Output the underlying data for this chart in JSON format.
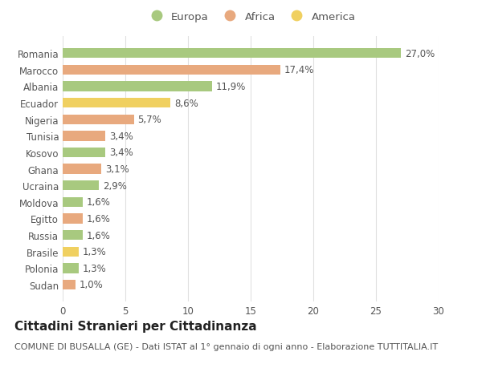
{
  "countries": [
    "Romania",
    "Marocco",
    "Albania",
    "Ecuador",
    "Nigeria",
    "Tunisia",
    "Kosovo",
    "Ghana",
    "Ucraina",
    "Moldova",
    "Egitto",
    "Russia",
    "Brasile",
    "Polonia",
    "Sudan"
  ],
  "values": [
    27.0,
    17.4,
    11.9,
    8.6,
    5.7,
    3.4,
    3.4,
    3.1,
    2.9,
    1.6,
    1.6,
    1.6,
    1.3,
    1.3,
    1.0
  ],
  "labels": [
    "27,0%",
    "17,4%",
    "11,9%",
    "8,6%",
    "5,7%",
    "3,4%",
    "3,4%",
    "3,1%",
    "2,9%",
    "1,6%",
    "1,6%",
    "1,6%",
    "1,3%",
    "1,3%",
    "1,0%"
  ],
  "continents": [
    "Europa",
    "Africa",
    "Europa",
    "America",
    "Africa",
    "Africa",
    "Europa",
    "Africa",
    "Europa",
    "Europa",
    "Africa",
    "Europa",
    "America",
    "Europa",
    "Africa"
  ],
  "colors": {
    "Europa": "#a8c97f",
    "Africa": "#e8a97e",
    "America": "#f0d060"
  },
  "title": "Cittadini Stranieri per Cittadinanza",
  "subtitle": "COMUNE DI BUSALLA (GE) - Dati ISTAT al 1° gennaio di ogni anno - Elaborazione TUTTITALIA.IT",
  "xlim": [
    0,
    30
  ],
  "xticks": [
    0,
    5,
    10,
    15,
    20,
    25,
    30
  ],
  "background_color": "#ffffff",
  "grid_color": "#e0e0e0",
  "bar_height": 0.6,
  "label_fontsize": 8.5,
  "tick_fontsize": 8.5,
  "title_fontsize": 11,
  "subtitle_fontsize": 8
}
